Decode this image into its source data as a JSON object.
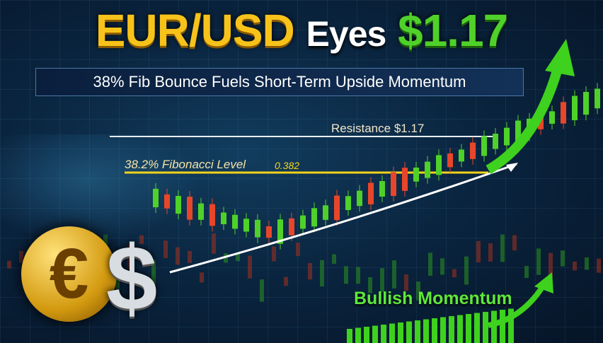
{
  "headline": {
    "part1": "EUR/USD",
    "part2": "Eyes",
    "part3": "$1.17"
  },
  "subtitle": "38% Fib Bounce Fuels Short-Term Upside Momentum",
  "resistance_label": "Resistance $1.17",
  "fib_label": "38.2% Fibonacci Level",
  "fib_value": "0.382",
  "momentum_label": "Bullish Momentum",
  "euro_symbol": "€",
  "dollar_symbol": "$",
  "colors": {
    "gold": "#f7c21a",
    "green": "#4fd12a",
    "red": "#e8462a",
    "background": "#0a2540"
  }
}
